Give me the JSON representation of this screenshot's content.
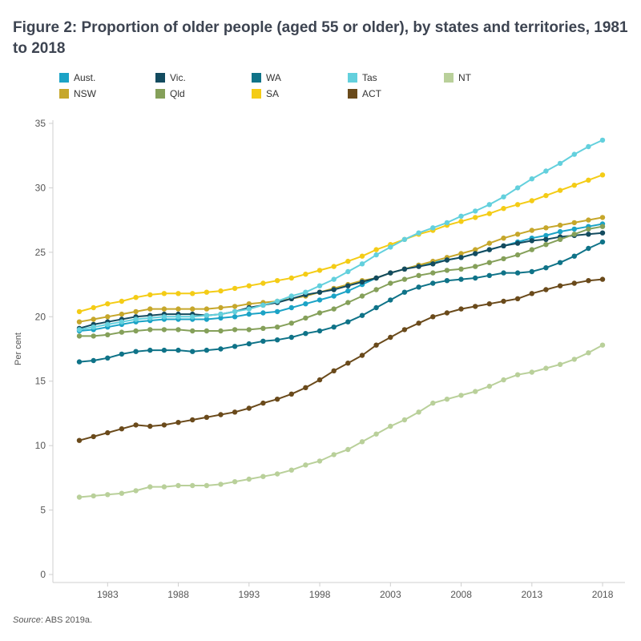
{
  "title": "Figure 2: Proportion of older people (aged 55 or older), by states and territories, 1981 to 2018",
  "source_label": "Source",
  "source_text": ": ABS 2019a.",
  "chart_data": {
    "type": "line",
    "title": "Figure 2: Proportion of older people (aged 55 or older), by states and territories, 1981 to 2018",
    "xlabel": "",
    "ylabel": "Per cent",
    "xlim": [
      1980,
      2019
    ],
    "ylim": [
      0,
      35
    ],
    "x_ticks": [
      1983,
      1988,
      1993,
      1998,
      2003,
      2008,
      2013,
      2018
    ],
    "y_ticks": [
      0,
      5,
      10,
      15,
      20,
      25,
      30,
      35
    ],
    "grid": false,
    "legend_position": "top",
    "x": [
      1981,
      1982,
      1983,
      1984,
      1985,
      1986,
      1987,
      1988,
      1989,
      1990,
      1991,
      1992,
      1993,
      1994,
      1995,
      1996,
      1997,
      1998,
      1999,
      2000,
      2001,
      2002,
      2003,
      2004,
      2005,
      2006,
      2007,
      2008,
      2009,
      2010,
      2011,
      2012,
      2013,
      2014,
      2015,
      2016,
      2017,
      2018
    ],
    "series": [
      {
        "name": "Aust.",
        "color": "#1ba3c6",
        "values": [
          18.9,
          19.0,
          19.2,
          19.4,
          19.6,
          19.7,
          19.8,
          19.8,
          19.8,
          19.8,
          19.9,
          20.0,
          20.2,
          20.3,
          20.4,
          20.7,
          21.0,
          21.3,
          21.6,
          22.0,
          22.5,
          23.0,
          23.4,
          23.7,
          24.0,
          24.2,
          24.4,
          24.6,
          24.9,
          25.2,
          25.5,
          25.8,
          26.1,
          26.3,
          26.6,
          26.8,
          27.0,
          27.2
        ]
      },
      {
        "name": "NSW",
        "color": "#c6a72b",
        "values": [
          19.6,
          19.8,
          20.0,
          20.2,
          20.4,
          20.6,
          20.6,
          20.6,
          20.6,
          20.6,
          20.7,
          20.8,
          21.0,
          21.1,
          21.2,
          21.4,
          21.6,
          21.9,
          22.2,
          22.5,
          22.8,
          23.0,
          23.4,
          23.7,
          24.0,
          24.3,
          24.6,
          24.9,
          25.2,
          25.7,
          26.1,
          26.4,
          26.7,
          26.9,
          27.1,
          27.3,
          27.5,
          27.7
        ]
      },
      {
        "name": "Vic.",
        "color": "#134b5f",
        "values": [
          19.1,
          19.4,
          19.6,
          19.8,
          20.0,
          20.1,
          20.2,
          20.2,
          20.2,
          20.1,
          20.2,
          20.4,
          20.7,
          20.9,
          21.1,
          21.4,
          21.7,
          21.9,
          22.1,
          22.4,
          22.7,
          23.0,
          23.4,
          23.7,
          23.9,
          24.1,
          24.4,
          24.6,
          24.9,
          25.2,
          25.5,
          25.7,
          25.9,
          26.0,
          26.2,
          26.3,
          26.4,
          26.5
        ]
      },
      {
        "name": "Qld",
        "color": "#85a05a",
        "values": [
          18.5,
          18.5,
          18.6,
          18.8,
          18.9,
          19.0,
          19.0,
          19.0,
          18.9,
          18.9,
          18.9,
          19.0,
          19.0,
          19.1,
          19.2,
          19.5,
          19.9,
          20.3,
          20.6,
          21.1,
          21.6,
          22.1,
          22.6,
          22.9,
          23.2,
          23.4,
          23.6,
          23.7,
          23.9,
          24.2,
          24.5,
          24.8,
          25.2,
          25.6,
          26.0,
          26.4,
          26.8,
          27.0
        ]
      },
      {
        "name": "WA",
        "color": "#0f7388",
        "values": [
          16.5,
          16.6,
          16.8,
          17.1,
          17.3,
          17.4,
          17.4,
          17.4,
          17.3,
          17.4,
          17.5,
          17.7,
          17.9,
          18.1,
          18.2,
          18.4,
          18.7,
          18.9,
          19.2,
          19.6,
          20.1,
          20.7,
          21.3,
          21.9,
          22.3,
          22.6,
          22.8,
          22.9,
          23.0,
          23.2,
          23.4,
          23.4,
          23.5,
          23.8,
          24.2,
          24.7,
          25.3,
          25.8
        ]
      },
      {
        "name": "SA",
        "color": "#f4cc16",
        "values": [
          20.4,
          20.7,
          21.0,
          21.2,
          21.5,
          21.7,
          21.8,
          21.8,
          21.8,
          21.9,
          22.0,
          22.2,
          22.4,
          22.6,
          22.8,
          23.0,
          23.3,
          23.6,
          23.9,
          24.3,
          24.7,
          25.2,
          25.6,
          26.0,
          26.4,
          26.7,
          27.1,
          27.4,
          27.7,
          28.0,
          28.4,
          28.7,
          29.0,
          29.4,
          29.8,
          30.2,
          30.6,
          31.0
        ]
      },
      {
        "name": "Tas",
        "color": "#63d0dd",
        "values": [
          19.0,
          19.2,
          19.4,
          19.6,
          19.8,
          19.9,
          20.0,
          20.0,
          20.0,
          20.1,
          20.2,
          20.4,
          20.6,
          20.9,
          21.2,
          21.6,
          21.9,
          22.4,
          22.9,
          23.5,
          24.1,
          24.8,
          25.4,
          26.0,
          26.5,
          26.9,
          27.3,
          27.8,
          28.2,
          28.7,
          29.3,
          30.0,
          30.7,
          31.3,
          31.9,
          32.6,
          33.2,
          33.7
        ]
      },
      {
        "name": "ACT",
        "color": "#6a4a1b",
        "values": [
          10.4,
          10.7,
          11.0,
          11.3,
          11.6,
          11.5,
          11.6,
          11.8,
          12.0,
          12.2,
          12.4,
          12.6,
          12.9,
          13.3,
          13.6,
          14.0,
          14.5,
          15.1,
          15.8,
          16.4,
          17.0,
          17.8,
          18.4,
          19.0,
          19.5,
          20.0,
          20.3,
          20.6,
          20.8,
          21.0,
          21.2,
          21.4,
          21.8,
          22.1,
          22.4,
          22.6,
          22.8,
          22.9
        ]
      },
      {
        "name": "NT",
        "color": "#b9d09a",
        "values": [
          6.0,
          6.1,
          6.2,
          6.3,
          6.5,
          6.8,
          6.8,
          6.9,
          6.9,
          6.9,
          7.0,
          7.2,
          7.4,
          7.6,
          7.8,
          8.1,
          8.5,
          8.8,
          9.3,
          9.7,
          10.3,
          10.9,
          11.5,
          12.0,
          12.6,
          13.3,
          13.6,
          13.9,
          14.2,
          14.6,
          15.1,
          15.5,
          15.7,
          16.0,
          16.3,
          16.7,
          17.2,
          17.8
        ]
      }
    ]
  }
}
